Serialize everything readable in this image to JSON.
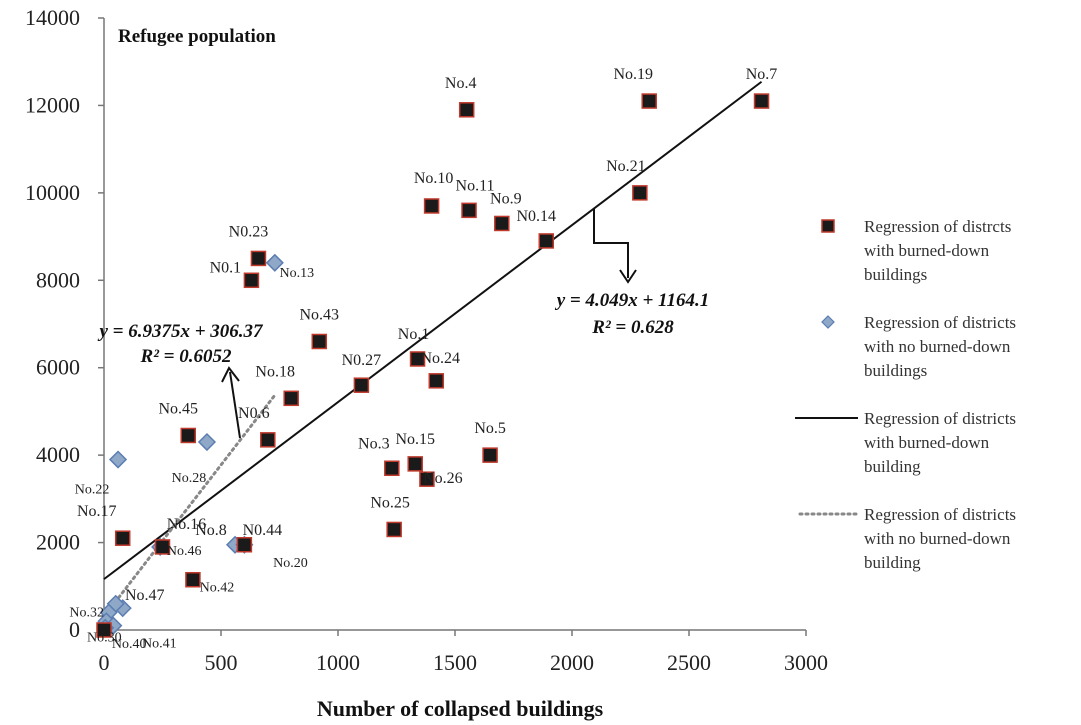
{
  "chart_data": {
    "type": "scatter",
    "title": "",
    "xlabel": "Number of collapsed buildings",
    "ylabel": "Refugee population",
    "xlim": [
      0,
      3000
    ],
    "ylim": [
      0,
      14000
    ],
    "x_ticks": [
      "0",
      "500",
      "1000",
      "1500",
      "2000",
      "2500",
      "3000"
    ],
    "y_ticks": [
      "0",
      "2000",
      "4000",
      "6000",
      "8000",
      "10000",
      "12000",
      "14000"
    ],
    "grid": false,
    "legend_placement": "right",
    "series": [
      {
        "name": "Regression of distrcts with burned-down buildings",
        "marker": "square",
        "color": "#1a1a1a",
        "edge_color": "#c0392b",
        "points": [
          {
            "x": 2810,
            "y": 12100,
            "label": "No.7"
          },
          {
            "x": 2330,
            "y": 12100,
            "label": "No.19"
          },
          {
            "x": 1550,
            "y": 11900,
            "label": "No.4"
          },
          {
            "x": 2290,
            "y": 10000,
            "label": "No.21"
          },
          {
            "x": 1400,
            "y": 9700,
            "label": "No.10"
          },
          {
            "x": 1560,
            "y": 9600,
            "label": "No.11"
          },
          {
            "x": 1700,
            "y": 9300,
            "label": "No.9"
          },
          {
            "x": 1890,
            "y": 8900,
            "label": "N0.14"
          },
          {
            "x": 660,
            "y": 8500,
            "label": "N0.23"
          },
          {
            "x": 630,
            "y": 8000,
            "label": "N0.1"
          },
          {
            "x": 920,
            "y": 6600,
            "label": "No.43"
          },
          {
            "x": 1340,
            "y": 6200,
            "label": "No.1"
          },
          {
            "x": 1420,
            "y": 5700,
            "label": "No.24"
          },
          {
            "x": 1100,
            "y": 5600,
            "label": "N0.27"
          },
          {
            "x": 800,
            "y": 5300,
            "label": "No.18"
          },
          {
            "x": 360,
            "y": 4450,
            "label": "No.45"
          },
          {
            "x": 700,
            "y": 4350,
            "label": "N0.6"
          },
          {
            "x": 1650,
            "y": 4000,
            "label": "No.5"
          },
          {
            "x": 1230,
            "y": 3700,
            "label": "No.3"
          },
          {
            "x": 1330,
            "y": 3800,
            "label": "No.15"
          },
          {
            "x": 1380,
            "y": 3450,
            "label": "No.26"
          },
          {
            "x": 1240,
            "y": 2300,
            "label": "No.25"
          },
          {
            "x": 80,
            "y": 2100,
            "label": "No.17"
          },
          {
            "x": 250,
            "y": 1900,
            "label": "No.16"
          },
          {
            "x": 600,
            "y": 1950,
            "label": "N0.44"
          },
          {
            "x": 380,
            "y": 1150,
            "label": "No.42"
          },
          {
            "x": 0,
            "y": 0,
            "label": ""
          }
        ]
      },
      {
        "name": "Regression of districts with no burned-down buildings",
        "marker": "diamond",
        "color": "#8fa8c8",
        "edge_color": "#5b7db1",
        "points": [
          {
            "x": 730,
            "y": 8400,
            "label": "No.13"
          },
          {
            "x": 440,
            "y": 4300,
            "label": "No.28"
          },
          {
            "x": 60,
            "y": 3900,
            "label": "No.22"
          },
          {
            "x": 560,
            "y": 1950,
            "label": "No.8"
          },
          {
            "x": 600,
            "y": 1950,
            "label": "No.20"
          },
          {
            "x": 240,
            "y": 1900,
            "label": "No.46"
          },
          {
            "x": 80,
            "y": 500,
            "label": "No.47"
          },
          {
            "x": 50,
            "y": 600,
            "label": ""
          },
          {
            "x": 20,
            "y": 400,
            "label": "No.32"
          },
          {
            "x": 10,
            "y": 200,
            "label": "No.30"
          },
          {
            "x": 40,
            "y": 100,
            "label": "No.41"
          },
          {
            "x": 5,
            "y": 50,
            "label": "No.40"
          }
        ]
      }
    ],
    "regressions": [
      {
        "name": "Regression of districts with burned-down building",
        "style": "solid",
        "color": "#111111",
        "slope": 4.049,
        "intercept": 1164.1,
        "x_range": [
          0,
          2810
        ],
        "equation": "y = 4.049x + 1164.1",
        "r2": "R² = 0.628"
      },
      {
        "name": "Regression of districts with no burned-down building",
        "style": "dotted",
        "color": "#888888",
        "slope": 6.9375,
        "intercept": 306.37,
        "x_range": [
          0,
          730
        ],
        "equation": "y = 6.9375x + 306.37",
        "r2": "R² = 0.6052"
      }
    ],
    "legend": [
      {
        "kind": "square",
        "line1": "Regression of distrcts",
        "line2": "with burned-down",
        "line3": "buildings"
      },
      {
        "kind": "diamond",
        "line1": "Regression of districts",
        "line2": "with no burned-down",
        "line3": "buildings"
      },
      {
        "kind": "solid",
        "line1": "Regression of districts",
        "line2": "with burned-down",
        "line3": "building"
      },
      {
        "kind": "dotted",
        "line1": "Regression of districts",
        "line2": "with no burned-down",
        "line3": "building"
      }
    ]
  }
}
